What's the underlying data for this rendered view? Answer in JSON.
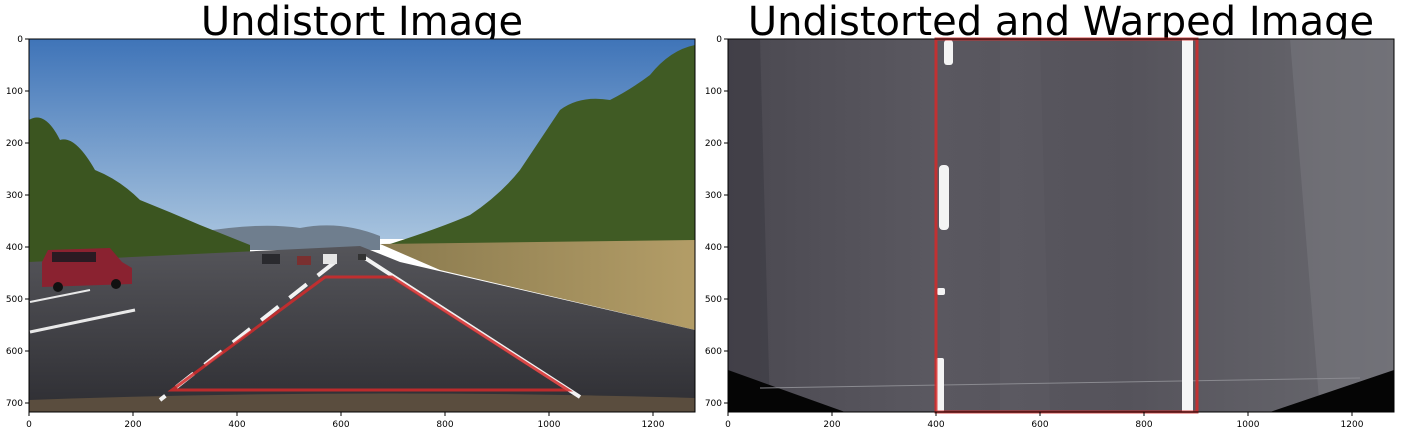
{
  "panels": [
    {
      "title": "Undistort Image",
      "x_ticks": [
        "0",
        "200",
        "400",
        "600",
        "800",
        "1000",
        "1200"
      ],
      "y_ticks": [
        "0",
        "100",
        "200",
        "300",
        "400",
        "500",
        "600",
        "700"
      ]
    },
    {
      "title": "Undistorted and Warped Image",
      "x_ticks": [
        "0",
        "200",
        "400",
        "600",
        "800",
        "1000",
        "1200"
      ],
      "y_ticks": [
        "0",
        "100",
        "200",
        "300",
        "400",
        "500",
        "600",
        "700"
      ]
    }
  ],
  "colors": {
    "sky": "#5b8fc9",
    "road": "#3f3f44",
    "grass": "#a48f5a",
    "trees": "#3e5a22",
    "lane_line": "#f2f2f2",
    "overlay": "#d42a2a"
  }
}
